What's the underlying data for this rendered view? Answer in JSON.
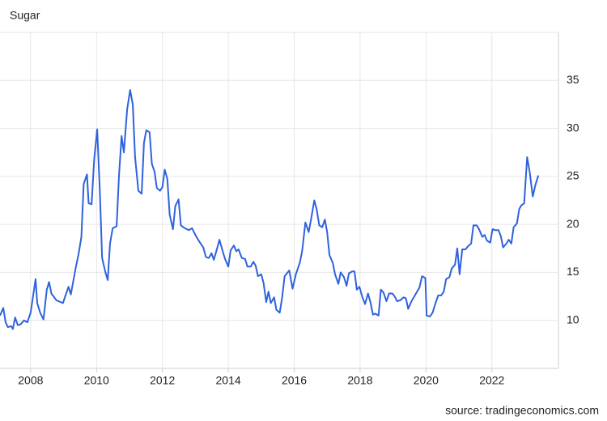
{
  "chart_data": {
    "type": "line",
    "title": "Sugar",
    "source": "source: tradingeconomics.com",
    "color": "#2f62dd",
    "grid": true,
    "x": [
      2007.07,
      2007.17,
      2007.24,
      2007.31,
      2007.41,
      2007.46,
      2007.53,
      2007.61,
      2007.7,
      2007.8,
      2007.9,
      2008.0,
      2008.15,
      2008.2,
      2008.29,
      2008.39,
      2008.49,
      2008.56,
      2008.63,
      2008.78,
      2008.98,
      2009.15,
      2009.22,
      2009.37,
      2009.46,
      2009.54,
      2009.61,
      2009.71,
      2009.76,
      2009.85,
      2009.93,
      2010.02,
      2010.1,
      2010.17,
      2010.27,
      2010.34,
      2010.41,
      2010.49,
      2010.61,
      2010.68,
      2010.76,
      2010.83,
      2010.93,
      2011.02,
      2011.1,
      2011.17,
      2011.27,
      2011.37,
      2011.44,
      2011.51,
      2011.61,
      2011.68,
      2011.76,
      2011.83,
      2011.93,
      2012.0,
      2012.07,
      2012.15,
      2012.22,
      2012.32,
      2012.39,
      2012.49,
      2012.56,
      2012.68,
      2012.8,
      2012.9,
      2013.0,
      2013.12,
      2013.24,
      2013.32,
      2013.41,
      2013.49,
      2013.56,
      2013.66,
      2013.73,
      2013.83,
      2013.9,
      2014.0,
      2014.07,
      2014.17,
      2014.24,
      2014.31,
      2014.41,
      2014.51,
      2014.58,
      2014.68,
      2014.76,
      2014.83,
      2014.9,
      2015.0,
      2015.07,
      2015.15,
      2015.22,
      2015.29,
      2015.39,
      2015.46,
      2015.56,
      2015.63,
      2015.71,
      2015.85,
      2015.95,
      2016.05,
      2016.17,
      2016.24,
      2016.34,
      2016.44,
      2016.51,
      2016.61,
      2016.68,
      2016.76,
      2016.85,
      2016.93,
      2017.0,
      2017.07,
      2017.17,
      2017.24,
      2017.34,
      2017.41,
      2017.51,
      2017.59,
      2017.66,
      2017.76,
      2017.83,
      2017.9,
      2017.98,
      2018.07,
      2018.15,
      2018.24,
      2018.32,
      2018.39,
      2018.46,
      2018.56,
      2018.63,
      2018.71,
      2018.8,
      2018.88,
      2018.98,
      2019.05,
      2019.12,
      2019.22,
      2019.32,
      2019.39,
      2019.46,
      2019.56,
      2019.63,
      2019.73,
      2019.8,
      2019.88,
      2019.98,
      2020.02,
      2020.12,
      2020.2,
      2020.29,
      2020.37,
      2020.46,
      2020.54,
      2020.61,
      2020.71,
      2020.78,
      2020.88,
      2020.95,
      2021.02,
      2021.1,
      2021.2,
      2021.27,
      2021.37,
      2021.44,
      2021.54,
      2021.61,
      2021.71,
      2021.78,
      2021.85,
      2021.95,
      2022.02,
      2022.1,
      2022.2,
      2022.27,
      2022.34,
      2022.44,
      2022.51,
      2022.59,
      2022.66,
      2022.76,
      2022.83,
      2022.9,
      2022.98,
      2023.07,
      2023.15,
      2023.24,
      2023.32,
      2023.41
    ],
    "values": [
      10.5,
      11.3,
      9.8,
      9.3,
      9.4,
      9.1,
      10.3,
      9.5,
      9.6,
      10.0,
      9.8,
      10.8,
      14.3,
      11.8,
      10.8,
      10.1,
      13.2,
      14.0,
      12.8,
      12.1,
      11.8,
      13.5,
      12.7,
      15.5,
      17.0,
      18.7,
      24.2,
      25.2,
      22.2,
      22.1,
      26.8,
      29.9,
      23.5,
      16.5,
      15.0,
      14.2,
      18.0,
      19.6,
      19.8,
      25.0,
      29.2,
      27.5,
      32.0,
      34.0,
      32.5,
      27.0,
      23.5,
      23.2,
      28.5,
      29.8,
      29.6,
      26.3,
      25.5,
      23.8,
      23.5,
      23.9,
      25.7,
      24.7,
      21.0,
      19.5,
      21.9,
      22.6,
      19.9,
      19.6,
      19.4,
      19.6,
      18.9,
      18.2,
      17.6,
      16.6,
      16.5,
      17.0,
      16.3,
      17.5,
      18.4,
      17.2,
      16.4,
      15.6,
      17.3,
      17.8,
      17.2,
      17.4,
      16.5,
      16.4,
      15.6,
      15.6,
      16.1,
      15.7,
      14.6,
      14.8,
      13.9,
      11.9,
      13.0,
      11.8,
      12.4,
      11.1,
      10.8,
      12.3,
      14.6,
      15.2,
      13.3,
      14.8,
      16.0,
      17.2,
      20.2,
      19.2,
      20.5,
      22.5,
      21.6,
      19.9,
      19.7,
      20.5,
      19.2,
      16.8,
      16.0,
      14.8,
      13.8,
      15.0,
      14.5,
      13.6,
      14.9,
      15.1,
      15.1,
      13.2,
      13.5,
      12.4,
      11.7,
      12.8,
      11.8,
      10.6,
      10.7,
      10.5,
      13.2,
      12.9,
      12.0,
      12.8,
      12.8,
      12.5,
      12.0,
      12.1,
      12.4,
      12.3,
      11.2,
      12.0,
      12.4,
      13.0,
      13.4,
      14.6,
      14.4,
      10.5,
      10.4,
      10.8,
      11.8,
      12.6,
      12.6,
      13.0,
      14.3,
      14.5,
      15.4,
      15.8,
      17.5,
      14.8,
      17.4,
      17.4,
      17.7,
      18.0,
      19.9,
      19.9,
      19.5,
      18.7,
      18.9,
      18.3,
      18.1,
      19.5,
      19.4,
      19.4,
      18.8,
      17.6,
      18.0,
      18.4,
      18.0,
      19.7,
      20.1,
      21.6,
      22.0,
      22.2,
      27.0,
      25.4,
      22.9,
      24.1,
      25.1
    ],
    "xlim": [
      2007.07,
      2024.02
    ],
    "xticks": [
      2008,
      2010,
      2012,
      2014,
      2016,
      2018,
      2020,
      2022
    ],
    "ylim": [
      5,
      40
    ],
    "yticks": [
      10,
      15,
      20,
      25,
      30,
      35
    ]
  }
}
